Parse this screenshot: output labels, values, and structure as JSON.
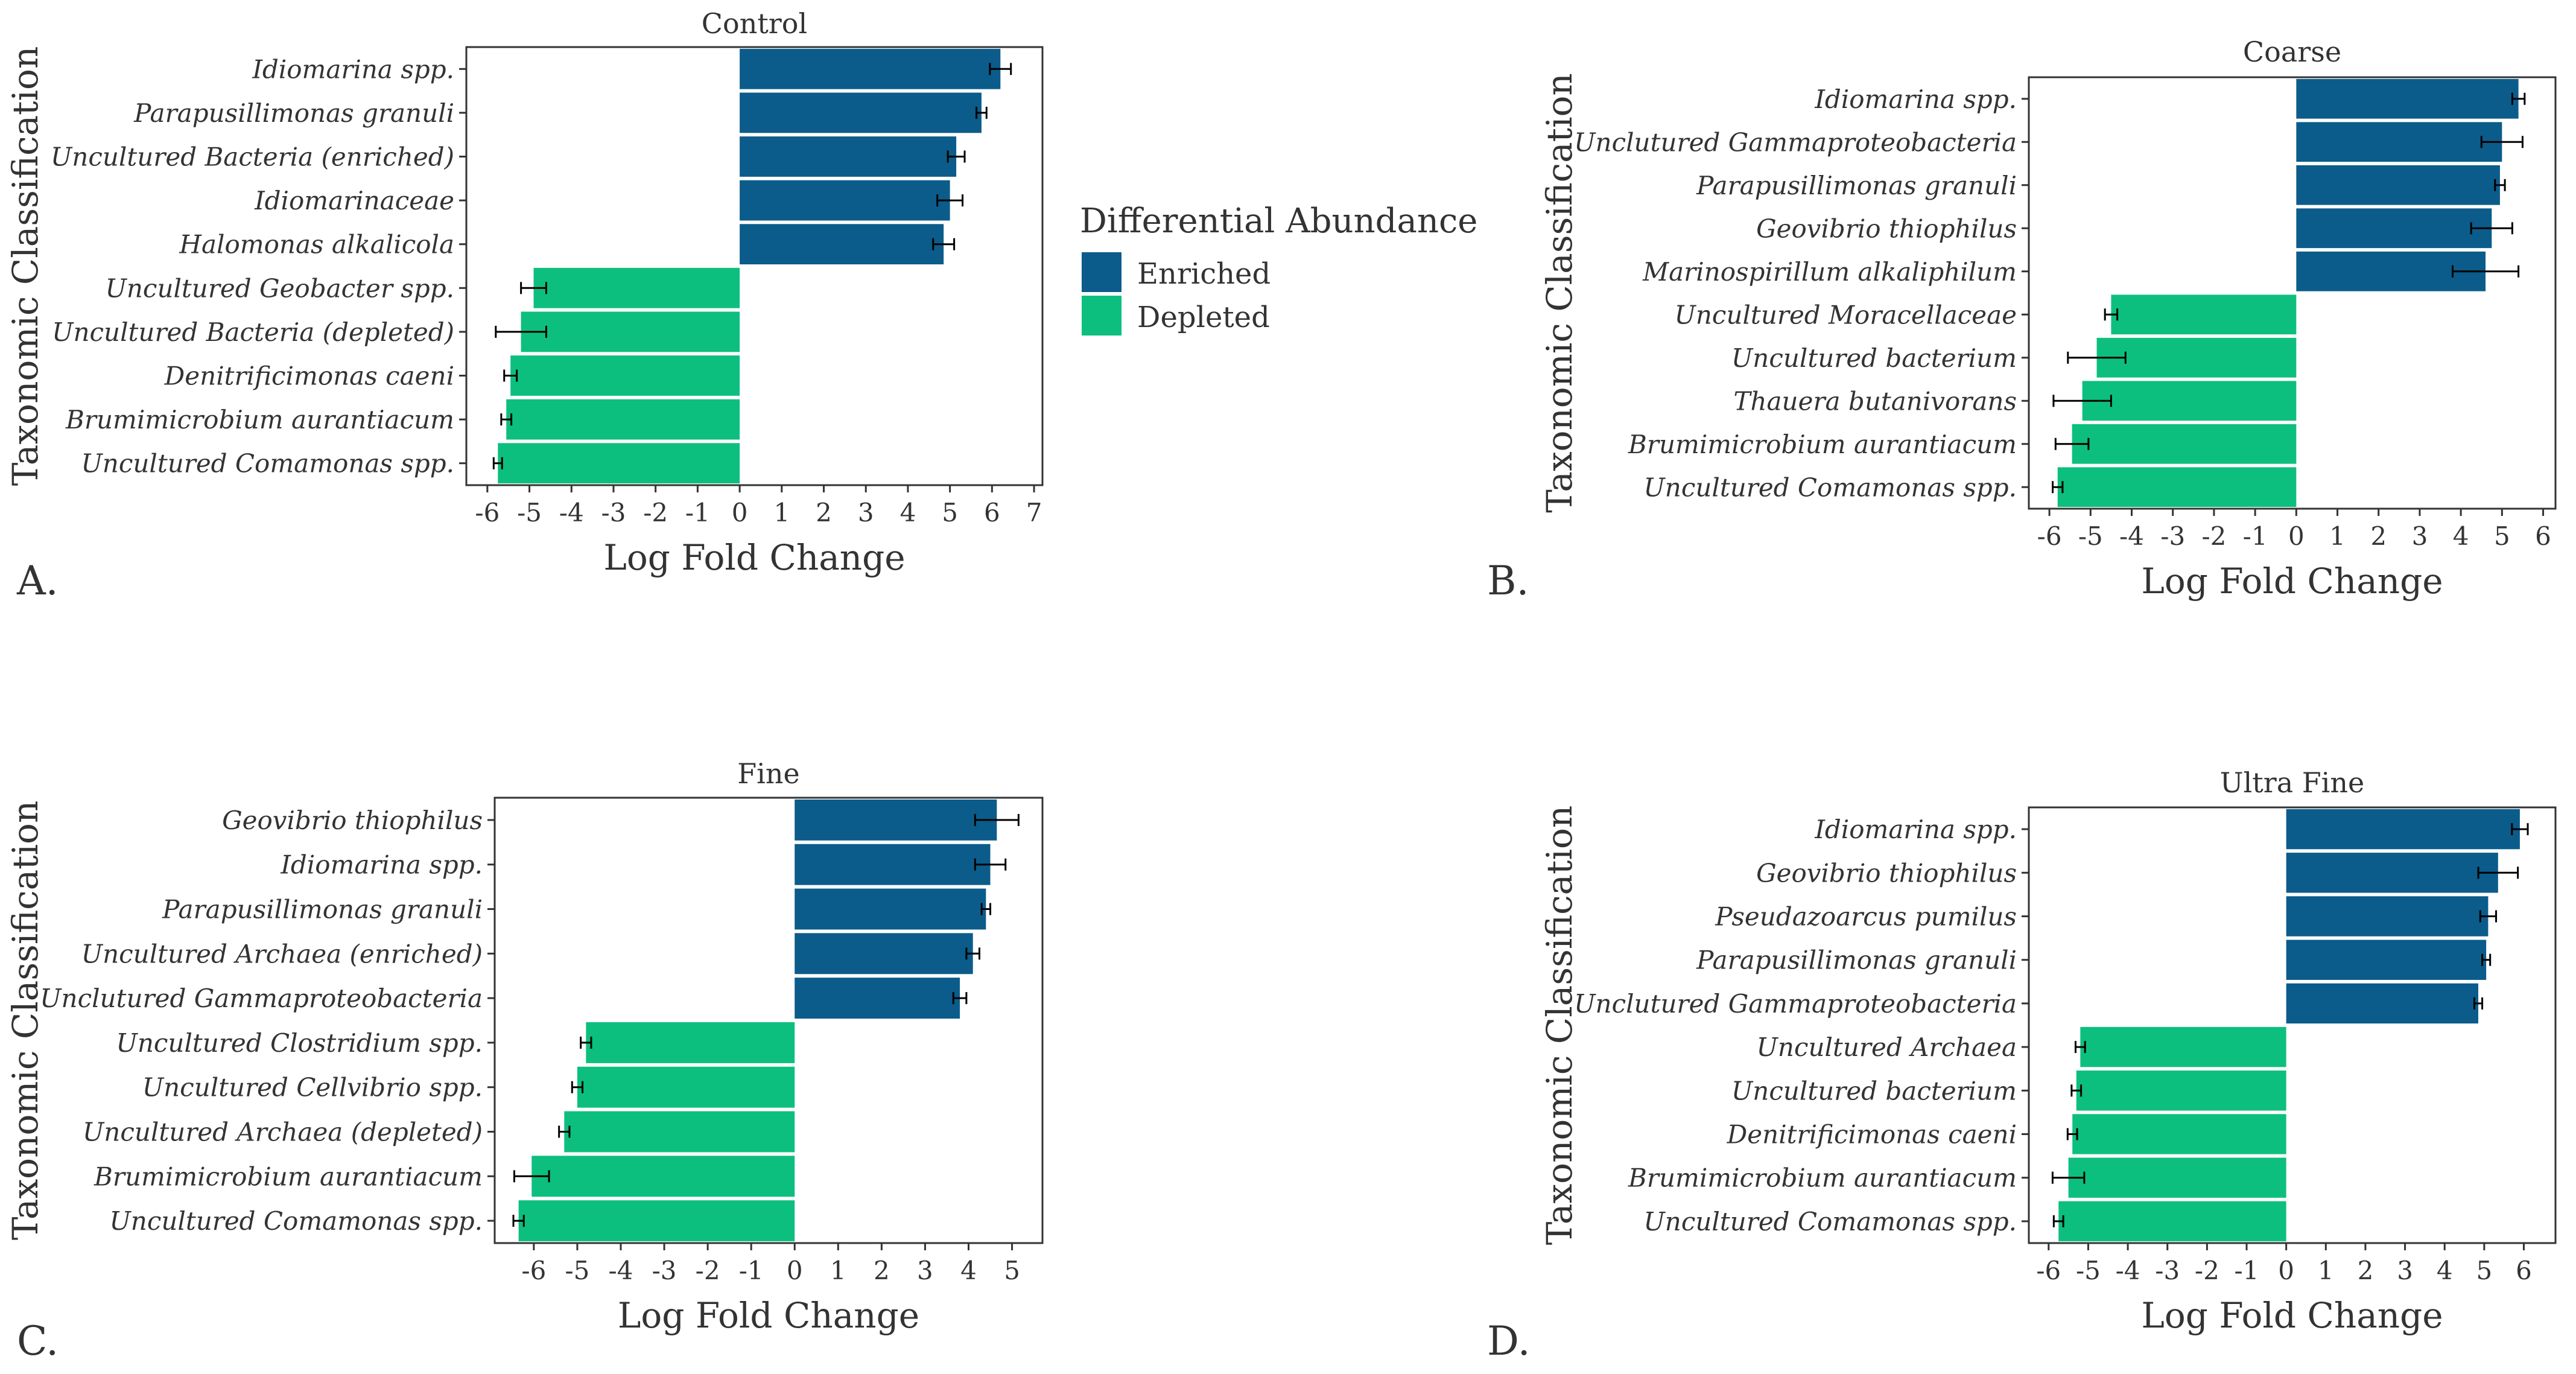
{
  "colors": {
    "enriched": "#0b5c8a",
    "depleted": "#0dbf7f",
    "axis": "#333333",
    "grid": "#ffffff"
  },
  "legend": {
    "title": "Differential Abundance",
    "items": [
      {
        "label": "Enriched",
        "color": "#0b5c8a"
      },
      {
        "label": "Depleted",
        "color": "#0dbf7f"
      }
    ]
  },
  "chart_data": [
    {
      "type": "bar",
      "orientation": "horizontal",
      "panel": "A.",
      "title": "Control",
      "xlabel": "Log Fold Change",
      "ylabel": "Taxonomic Classification",
      "xlim": [
        -6.5,
        7.2
      ],
      "xticks": [
        -6,
        -5,
        -4,
        -3,
        -2,
        -1,
        0,
        1,
        2,
        3,
        4,
        5,
        6,
        7
      ],
      "categories": [
        "Idiomarina spp.",
        "Parapusillimonas granuli",
        "Uncultured Bacteria (enriched)",
        "Idiomarinaceae",
        "Halomonas alkalicola",
        "Uncultured Geobacter spp.",
        "Uncultured Bacteria (depleted)",
        "Denitrificimonas caeni",
        "Brumimicrobium aurantiacum",
        "Uncultured Comamonas spp."
      ],
      "values": [
        6.2,
        5.75,
        5.15,
        5.0,
        4.85,
        -4.9,
        -5.2,
        -5.45,
        -5.55,
        -5.75
      ],
      "errors": [
        0.25,
        0.12,
        0.2,
        0.3,
        0.25,
        0.3,
        0.6,
        0.15,
        0.12,
        0.1
      ],
      "groups": [
        "Enriched",
        "Enriched",
        "Enriched",
        "Enriched",
        "Enriched",
        "Depleted",
        "Depleted",
        "Depleted",
        "Depleted",
        "Depleted"
      ]
    },
    {
      "type": "bar",
      "orientation": "horizontal",
      "panel": "B.",
      "title": "Coarse",
      "xlabel": "Log Fold Change",
      "ylabel": "Taxonomic Classification",
      "xlim": [
        -6.5,
        6.3
      ],
      "xticks": [
        -6,
        -5,
        -4,
        -3,
        -2,
        -1,
        0,
        1,
        2,
        3,
        4,
        5,
        6
      ],
      "categories": [
        "Idiomarina spp.",
        "Unclutured Gammaproteobacteria",
        "Parapusillimonas granuli",
        "Geovibrio thiophilus",
        "Marinospirillum alkaliphilum",
        "Uncultured Moracellaceae",
        "Uncultured bacterium",
        "Thauera butanivorans",
        "Brumimicrobium aurantiacum",
        "Uncultured Comamonas spp."
      ],
      "values": [
        5.4,
        5.0,
        4.95,
        4.75,
        4.6,
        -4.5,
        -4.85,
        -5.2,
        -5.45,
        -5.8
      ],
      "errors": [
        0.15,
        0.5,
        0.12,
        0.5,
        0.8,
        0.15,
        0.7,
        0.7,
        0.4,
        0.12
      ],
      "groups": [
        "Enriched",
        "Enriched",
        "Enriched",
        "Enriched",
        "Enriched",
        "Depleted",
        "Depleted",
        "Depleted",
        "Depleted",
        "Depleted"
      ]
    },
    {
      "type": "bar",
      "orientation": "horizontal",
      "panel": "C.",
      "title": "Fine",
      "xlabel": "Log Fold Change",
      "ylabel": "Taxonomic Classification",
      "xlim": [
        -6.9,
        5.7
      ],
      "xticks": [
        -6,
        -5,
        -4,
        -3,
        -2,
        -1,
        0,
        1,
        2,
        3,
        4,
        5
      ],
      "categories": [
        "Geovibrio thiophilus",
        "Idiomarina spp.",
        "Parapusillimonas granuli",
        "Uncultured Archaea (enriched)",
        "Unclutured Gammaproteobacteria",
        "Uncultured Clostridium spp.",
        "Uncultured Cellvibrio spp.",
        "Uncultured Archaea (depleted)",
        "Brumimicrobium aurantiacum",
        "Uncultured Comamonas spp."
      ],
      "values": [
        4.65,
        4.5,
        4.4,
        4.1,
        3.8,
        -4.8,
        -5.0,
        -5.3,
        -6.05,
        -6.35
      ],
      "errors": [
        0.5,
        0.35,
        0.1,
        0.15,
        0.15,
        0.12,
        0.12,
        0.12,
        0.4,
        0.12
      ],
      "groups": [
        "Enriched",
        "Enriched",
        "Enriched",
        "Enriched",
        "Enriched",
        "Depleted",
        "Depleted",
        "Depleted",
        "Depleted",
        "Depleted"
      ]
    },
    {
      "type": "bar",
      "orientation": "horizontal",
      "panel": "D.",
      "title": "Ultra Fine",
      "xlabel": "Log Fold Change",
      "ylabel": "Taxonomic Classification",
      "xlim": [
        -6.5,
        6.8
      ],
      "xticks": [
        -6,
        -5,
        -4,
        -3,
        -2,
        -1,
        0,
        1,
        2,
        3,
        4,
        5,
        6
      ],
      "categories": [
        "Idiomarina spp.",
        "Geovibrio thiophilus",
        "Pseudazoarcus pumilus",
        "Parapusillimonas granuli",
        "Unclutured Gammaproteobacteria",
        "Uncultured Archaea",
        "Uncultured bacterium",
        "Denitrificimonas caeni",
        "Brumimicrobium aurantiacum",
        "Uncultured Comamonas spp."
      ],
      "values": [
        5.9,
        5.35,
        5.1,
        5.05,
        4.85,
        -5.2,
        -5.3,
        -5.4,
        -5.5,
        -5.75
      ],
      "errors": [
        0.2,
        0.5,
        0.2,
        0.1,
        0.1,
        0.12,
        0.12,
        0.12,
        0.4,
        0.12
      ],
      "groups": [
        "Enriched",
        "Enriched",
        "Enriched",
        "Enriched",
        "Enriched",
        "Depleted",
        "Depleted",
        "Depleted",
        "Depleted",
        "Depleted"
      ]
    }
  ]
}
